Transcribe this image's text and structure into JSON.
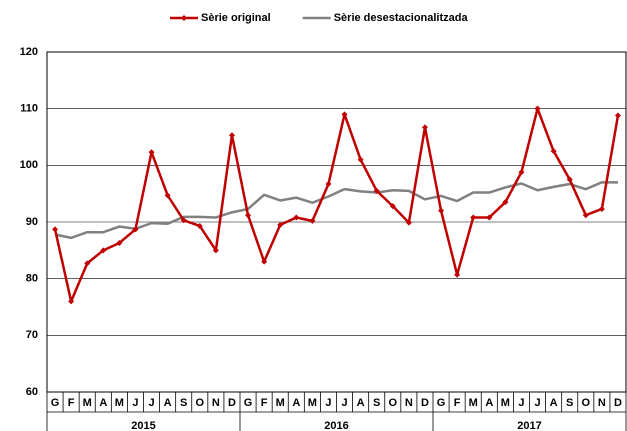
{
  "chart_data": {
    "type": "line",
    "categories": [
      "G",
      "F",
      "M",
      "A",
      "M",
      "J",
      "J",
      "A",
      "S",
      "O",
      "N",
      "D",
      "G",
      "F",
      "M",
      "A",
      "M",
      "J",
      "J",
      "A",
      "S",
      "O",
      "N",
      "D",
      "G",
      "F",
      "M",
      "A",
      "M",
      "J",
      "J",
      "A",
      "S",
      "O",
      "N",
      "D"
    ],
    "groups": [
      "2015",
      "2016",
      "2017"
    ],
    "series": [
      {
        "name": "Sèrie original",
        "color": "#c00000",
        "marker": "diamond",
        "values": [
          88.7,
          76,
          82.7,
          85,
          86.3,
          88.7,
          102.3,
          94.7,
          90.3,
          89.3,
          85,
          105.3,
          91.2,
          83,
          89.5,
          90.8,
          90.2,
          96.7,
          109,
          101,
          95.5,
          92.8,
          89.9,
          106.7,
          92,
          80.7,
          90.8,
          90.8,
          93.5,
          98.8,
          110,
          102.5,
          97.5,
          91.2,
          92.3,
          108.8
        ]
      },
      {
        "name": "Sèrie desestacionalitzada",
        "color": "#808080",
        "values": [
          87.8,
          87.2,
          88.2,
          88.2,
          89.2,
          88.8,
          89.8,
          89.7,
          90.9,
          90.9,
          90.8,
          91.7,
          92.3,
          94.8,
          93.8,
          94.3,
          93.4,
          94.5,
          95.8,
          95.4,
          95.2,
          95.6,
          95.5,
          94.0,
          94.6,
          93.7,
          95.2,
          95.2,
          96.1,
          96.8,
          95.6,
          96.2,
          96.7,
          95.8,
          97.0,
          97.0
        ]
      }
    ],
    "ylim": [
      60,
      120
    ],
    "yticks": [
      60,
      70,
      80,
      90,
      100,
      110,
      120
    ],
    "grid": true,
    "legend": "top"
  }
}
